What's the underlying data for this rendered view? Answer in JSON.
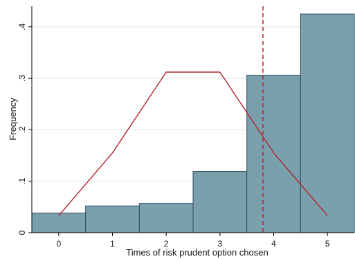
{
  "chart_data": {
    "type": "bar",
    "title": "",
    "xlabel": "Times of risk prudent option chosen",
    "ylabel": "Frequency",
    "xlim": [
      -0.5,
      5.5
    ],
    "ylim": [
      0,
      0.44
    ],
    "x_ticks": [
      {
        "value": 0,
        "label": "0"
      },
      {
        "value": 1,
        "label": "1"
      },
      {
        "value": 2,
        "label": "2"
      },
      {
        "value": 3,
        "label": "3"
      },
      {
        "value": 4,
        "label": "4"
      },
      {
        "value": 5,
        "label": "5"
      }
    ],
    "y_ticks": [
      {
        "value": 0,
        "label": "0"
      },
      {
        "value": 0.1,
        "label": ".1"
      },
      {
        "value": 0.2,
        "label": ".2"
      },
      {
        "value": 0.3,
        "label": ".3"
      },
      {
        "value": 0.4,
        "label": ".4"
      }
    ],
    "grid": "horizontal",
    "legend": "none",
    "bars": {
      "x": [
        0,
        1,
        2,
        3,
        4,
        5
      ],
      "values": [
        0.038,
        0.052,
        0.057,
        0.119,
        0.306,
        0.425
      ],
      "color": "#7a9fad",
      "edge_color": "#2e4a57"
    },
    "line": {
      "x": [
        0,
        1,
        2,
        3,
        4,
        5
      ],
      "values": [
        0.033,
        0.155,
        0.312,
        0.312,
        0.155,
        0.033
      ],
      "color": "#b0252e"
    },
    "vline": {
      "x": 3.8,
      "color": "#b0252e",
      "style": "dashed"
    }
  }
}
